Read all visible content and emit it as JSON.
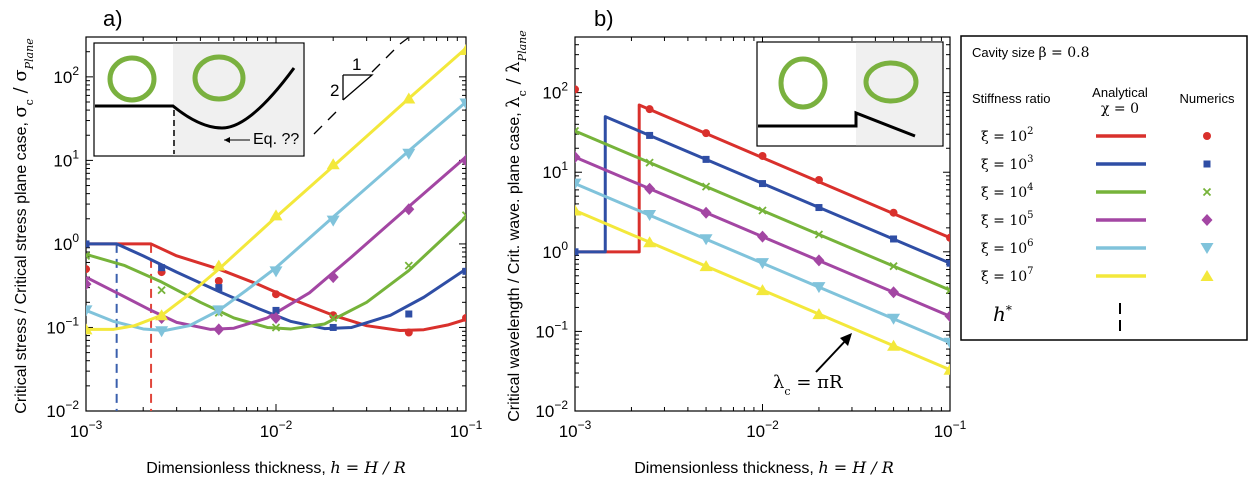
{
  "chart_data": [
    {
      "type": "line",
      "panel_label": "a)",
      "xlabel": "Dimensionless thickness,",
      "xlabel_math": "h = H / R",
      "ylabel": "Critical stress / Critical stress plane case,",
      "ylabel_math": "σ",
      "ylabel_math_sub": "c",
      "ylabel_math_mid": " / σ",
      "ylabel_math_sub2": "Plane",
      "xscale": "log",
      "yscale": "log",
      "xlim": [
        0.001,
        0.1
      ],
      "ylim": [
        0.01,
        300
      ],
      "xticks": [
        {
          "value": 0.001,
          "base": "10",
          "exp": "−3"
        },
        {
          "value": 0.01,
          "base": "10",
          "exp": "−2"
        },
        {
          "value": 0.1,
          "base": "10",
          "exp": "−1"
        }
      ],
      "yticks": [
        {
          "value": 0.01,
          "base": "10",
          "exp": "−2"
        },
        {
          "value": 0.1,
          "base": "10",
          "exp": "−1"
        },
        {
          "value": 1,
          "base": "10",
          "exp": "0"
        },
        {
          "value": 10,
          "base": "10",
          "exp": "1"
        },
        {
          "value": 100,
          "base": "10",
          "exp": "2"
        }
      ],
      "slope_triangle": {
        "run": "1",
        "rise": "2"
      },
      "inset_annotation": "Eq. ??",
      "hstar_lines": [
        {
          "x": 0.00145,
          "color": "#3a5fad"
        },
        {
          "x": 0.0022,
          "color": "#e0453b"
        }
      ],
      "series": [
        {
          "name": "ξ = 10^2",
          "color": "#d9302c",
          "marker": "circle",
          "x": [
            0.001,
            0.0022,
            0.003,
            0.005,
            0.008,
            0.012,
            0.02,
            0.03,
            0.045,
            0.06,
            0.08,
            0.1
          ],
          "y": [
            1.0,
            1.0,
            0.72,
            0.5,
            0.33,
            0.22,
            0.14,
            0.105,
            0.092,
            0.094,
            0.107,
            0.125
          ],
          "points_x": [
            0.001,
            0.0025,
            0.005,
            0.01,
            0.02,
            0.05,
            0.1
          ],
          "points_y": [
            0.5,
            0.46,
            0.36,
            0.25,
            0.14,
            0.087,
            0.13
          ]
        },
        {
          "name": "ξ = 10^3",
          "color": "#2f4ea5",
          "marker": "square",
          "x": [
            0.001,
            0.00145,
            0.002,
            0.003,
            0.005,
            0.008,
            0.012,
            0.018,
            0.025,
            0.04,
            0.06,
            0.1
          ],
          "y": [
            1.0,
            1.0,
            0.72,
            0.46,
            0.27,
            0.17,
            0.118,
            0.097,
            0.1,
            0.14,
            0.23,
            0.5
          ],
          "points_x": [
            0.001,
            0.0025,
            0.005,
            0.01,
            0.02,
            0.05,
            0.1
          ],
          "points_y": [
            1.0,
            0.52,
            0.3,
            0.16,
            0.1,
            0.145,
            0.47
          ]
        },
        {
          "name": "ξ = 10^4",
          "color": "#76b33a",
          "marker": "x",
          "x": [
            0.001,
            0.0016,
            0.0025,
            0.004,
            0.006,
            0.009,
            0.012,
            0.018,
            0.03,
            0.05,
            0.1
          ],
          "y": [
            0.75,
            0.55,
            0.35,
            0.2,
            0.13,
            0.1,
            0.096,
            0.11,
            0.2,
            0.48,
            2.1
          ],
          "points_x": [
            0.001,
            0.0025,
            0.005,
            0.01,
            0.02,
            0.05,
            0.1
          ],
          "points_y": [
            0.72,
            0.28,
            0.15,
            0.1,
            0.13,
            0.55,
            2.2
          ]
        },
        {
          "name": "ξ = 10^5",
          "color": "#a346a3",
          "marker": "diamond",
          "x": [
            0.001,
            0.0015,
            0.0022,
            0.003,
            0.0045,
            0.006,
            0.009,
            0.015,
            0.025,
            0.05,
            0.1
          ],
          "y": [
            0.4,
            0.25,
            0.16,
            0.115,
            0.095,
            0.098,
            0.13,
            0.26,
            0.7,
            2.8,
            11
          ],
          "points_x": [
            0.001,
            0.0025,
            0.005,
            0.01,
            0.02,
            0.05,
            0.1
          ],
          "points_y": [
            0.33,
            0.13,
            0.095,
            0.13,
            0.4,
            2.6,
            10
          ]
        },
        {
          "name": "ξ = 10^6",
          "color": "#80c3db",
          "marker": "tri-down",
          "x": [
            0.001,
            0.0014,
            0.002,
            0.0026,
            0.0035,
            0.005,
            0.007,
            0.01,
            0.02,
            0.05,
            0.1
          ],
          "y": [
            0.16,
            0.118,
            0.096,
            0.092,
            0.105,
            0.16,
            0.28,
            0.52,
            2.1,
            13,
            50
          ],
          "points_x": [
            0.001,
            0.0025,
            0.005,
            0.01,
            0.02,
            0.05,
            0.1
          ],
          "points_y": [
            0.16,
            0.09,
            0.16,
            0.47,
            1.9,
            12,
            48
          ]
        },
        {
          "name": "ξ = 10^7",
          "color": "#f3e83b",
          "marker": "tri-up",
          "x": [
            0.001,
            0.0014,
            0.0018,
            0.0025,
            0.0035,
            0.005,
            0.01,
            0.02,
            0.05,
            0.1
          ],
          "y": [
            0.095,
            0.095,
            0.105,
            0.14,
            0.25,
            0.5,
            2.1,
            8.5,
            55,
            220
          ],
          "points_x": [
            0.001,
            0.0025,
            0.005,
            0.01,
            0.02,
            0.05,
            0.1
          ],
          "points_y": [
            0.095,
            0.14,
            0.55,
            2.2,
            9,
            55,
            210
          ]
        }
      ]
    },
    {
      "type": "line",
      "panel_label": "b)",
      "xlabel": "Dimensionless thickness,",
      "xlabel_math": "h = H / R",
      "ylabel": "Critical wavelength / Crit. wave. plane case,",
      "ylabel_math": "λ",
      "ylabel_math_sub": "c",
      "ylabel_math_mid": " / λ",
      "ylabel_math_sub2": "Plane",
      "xscale": "log",
      "yscale": "log",
      "xlim": [
        0.001,
        0.1
      ],
      "ylim": [
        0.01,
        500
      ],
      "xticks": [
        {
          "value": 0.001,
          "base": "10",
          "exp": "−3"
        },
        {
          "value": 0.01,
          "base": "10",
          "exp": "−2"
        },
        {
          "value": 0.1,
          "base": "10",
          "exp": "−1"
        }
      ],
      "yticks": [
        {
          "value": 0.01,
          "base": "10",
          "exp": "−2"
        },
        {
          "value": 0.1,
          "base": "10",
          "exp": "−1"
        },
        {
          "value": 1,
          "base": "10",
          "exp": "0"
        },
        {
          "value": 10,
          "base": "10",
          "exp": "1"
        },
        {
          "value": 100,
          "base": "10",
          "exp": "2"
        }
      ],
      "annotation": {
        "text_main": "λ",
        "text_sub": "c",
        "text_rest": " = πR",
        "at_x": 0.035,
        "at_y": 0.33
      },
      "series": [
        {
          "name": "ξ = 10^2",
          "color": "#d9302c",
          "marker": "circle",
          "x": [
            0.001,
            0.0022,
            0.0022,
            0.1
          ],
          "y": [
            1.0,
            1.0,
            70,
            1.5
          ],
          "points_x": [
            0.001,
            0.0025,
            0.005,
            0.01,
            0.02,
            0.05,
            0.1
          ],
          "points_y": [
            110,
            62,
            31,
            16,
            8,
            3.1,
            1.5
          ]
        },
        {
          "name": "ξ = 10^3",
          "color": "#2f4ea5",
          "marker": "square",
          "x": [
            0.001,
            0.00145,
            0.00145,
            0.1
          ],
          "y": [
            1.0,
            1.0,
            50,
            0.72
          ],
          "points_x": [
            0.001,
            0.0025,
            0.005,
            0.01,
            0.02,
            0.05,
            0.1
          ],
          "points_y": [
            1.0,
            29,
            14.5,
            7.2,
            3.6,
            1.45,
            0.72
          ]
        },
        {
          "name": "ξ = 10^4",
          "color": "#76b33a",
          "marker": "x",
          "x": [
            0.001,
            0.1
          ],
          "y": [
            33,
            0.33
          ],
          "points_x": [
            0.001,
            0.0025,
            0.005,
            0.01,
            0.02,
            0.05,
            0.1
          ],
          "points_y": [
            33,
            13.2,
            6.6,
            3.3,
            1.65,
            0.66,
            0.33
          ]
        },
        {
          "name": "ξ = 10^5",
          "color": "#a346a3",
          "marker": "diamond",
          "x": [
            0.001,
            0.1
          ],
          "y": [
            15.5,
            0.155
          ],
          "points_x": [
            0.001,
            0.0025,
            0.005,
            0.01,
            0.02,
            0.05,
            0.1
          ],
          "points_y": [
            15.5,
            6.2,
            3.1,
            1.55,
            0.78,
            0.31,
            0.155
          ]
        },
        {
          "name": "ξ = 10^6",
          "color": "#80c3db",
          "marker": "tri-down",
          "x": [
            0.001,
            0.1
          ],
          "y": [
            7.2,
            0.072
          ],
          "points_x": [
            0.001,
            0.0025,
            0.005,
            0.01,
            0.02,
            0.05,
            0.1
          ],
          "points_y": [
            7.2,
            2.9,
            1.44,
            0.72,
            0.36,
            0.144,
            0.072
          ]
        },
        {
          "name": "ξ = 10^7",
          "color": "#f3e83b",
          "marker": "tri-up",
          "x": [
            0.001,
            0.1
          ],
          "y": [
            3.3,
            0.033
          ],
          "points_x": [
            0.001,
            0.0025,
            0.005,
            0.01,
            0.02,
            0.05,
            0.1
          ],
          "points_y": [
            3.3,
            1.32,
            0.66,
            0.33,
            0.165,
            0.066,
            0.033
          ]
        }
      ]
    }
  ],
  "legend": {
    "cavity_label": "Cavity size",
    "cavity_value": "β = 0.8",
    "stiffness_label": "Stiffness ratio",
    "analytical_label": "Analytical",
    "analytical_sub": "χ = 0",
    "numerics_label": "Numerics",
    "xi_prefix": "ξ = 10",
    "xi_exps": [
      "2",
      "3",
      "4",
      "5",
      "6",
      "7"
    ],
    "hstar_label": "h",
    "hstar_sup": "*"
  }
}
